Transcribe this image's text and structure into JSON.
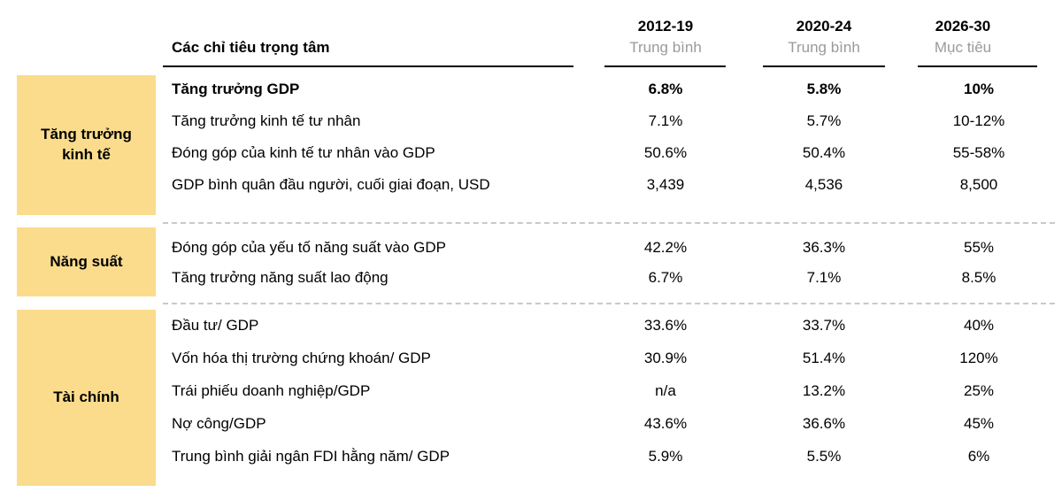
{
  "chart_data": {
    "type": "table",
    "title": "Các chỉ tiêu trọng tâm",
    "columns": [
      {
        "period": "2012-19",
        "label": "Trung bình"
      },
      {
        "period": "2020-24",
        "label": "Trung bình"
      },
      {
        "period": "2026-30",
        "label": "Mục tiêu"
      }
    ],
    "sections": [
      {
        "category": "Tăng trưởng kinh tế",
        "rows": [
          {
            "indicator": "Tăng trưởng GDP",
            "values": [
              "6.8%",
              "5.8%",
              "10%"
            ],
            "emphasis": true
          },
          {
            "indicator": "Tăng trưởng kinh tế tư nhân",
            "values": [
              "7.1%",
              "5.7%",
              "10-12%"
            ],
            "emphasis": false
          },
          {
            "indicator": "Đóng góp của kinh tế tư nhân vào GDP",
            "values": [
              "50.6%",
              "50.4%",
              "55-58%"
            ],
            "emphasis": false
          },
          {
            "indicator": "GDP bình quân đầu người, cuối giai đoạn, USD",
            "values": [
              "3,439",
              "4,536",
              "8,500"
            ],
            "emphasis": false
          }
        ]
      },
      {
        "category": "Năng suất",
        "rows": [
          {
            "indicator": "Đóng góp của yếu tố năng suất vào GDP",
            "values": [
              "42.2%",
              "36.3%",
              "55%"
            ],
            "emphasis": false
          },
          {
            "indicator": "Tăng trưởng năng suất lao động",
            "values": [
              "6.7%",
              "7.1%",
              "8.5%"
            ],
            "emphasis": false
          }
        ]
      },
      {
        "category": "Tài chính",
        "rows": [
          {
            "indicator": "Đầu tư/ GDP",
            "values": [
              "33.6%",
              "33.7%",
              "40%"
            ],
            "emphasis": false
          },
          {
            "indicator": "Vốn hóa thị trường chứng khoán/ GDP",
            "values": [
              "30.9%",
              "51.4%",
              "120%"
            ],
            "emphasis": false
          },
          {
            "indicator": "Trái phiếu doanh nghiệp/GDP",
            "values": [
              "n/a",
              "13.2%",
              "25%"
            ],
            "emphasis": false
          },
          {
            "indicator": "Nợ công/GDP",
            "values": [
              "43.6%",
              "36.6%",
              "45%"
            ],
            "emphasis": false
          },
          {
            "indicator": "Trung bình giải ngân FDI hằng năm/ GDP",
            "values": [
              "5.9%",
              "5.5%",
              "6%"
            ],
            "emphasis": false
          }
        ]
      }
    ],
    "layout_hints": {
      "grid": "off",
      "header_rule": "solid black",
      "section_divider": "light gray dashed"
    }
  },
  "colors": {
    "category_bg": "#FADC8C",
    "header_subtitle": "#9A9A9A",
    "text": "#000000",
    "dashed_divider": "#C9C9C9",
    "rule": "#000000"
  }
}
